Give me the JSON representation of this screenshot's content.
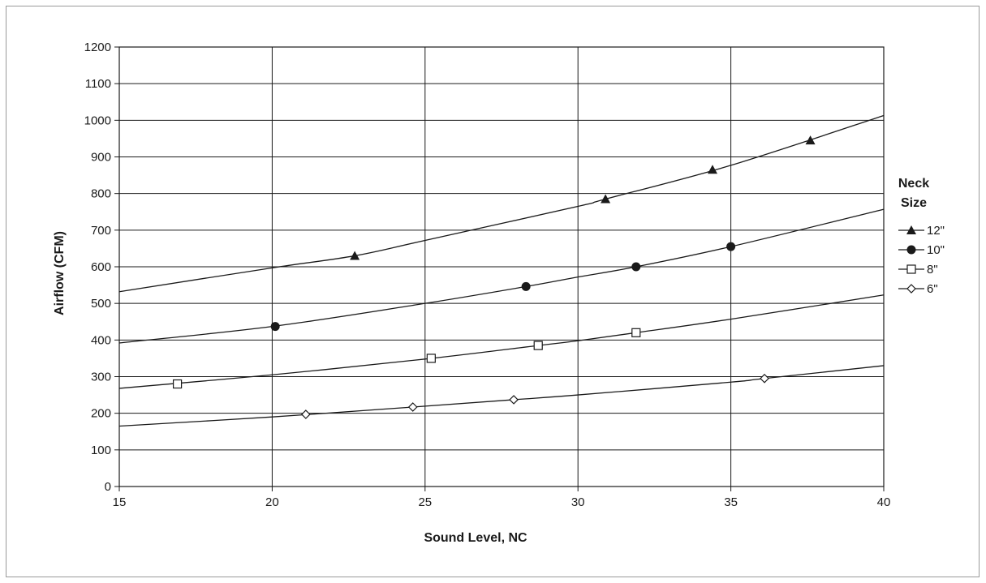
{
  "chart_data": {
    "type": "line",
    "title": "",
    "xlabel": "Sound Level, NC",
    "ylabel": "Airflow (CFM)",
    "xlim": [
      15,
      40
    ],
    "ylim": [
      0,
      1200
    ],
    "xticks": [
      15,
      20,
      25,
      30,
      35,
      40
    ],
    "yticks": [
      0,
      100,
      200,
      300,
      400,
      500,
      600,
      700,
      800,
      900,
      1000,
      1100,
      1200
    ],
    "grid": true,
    "legend_title": [
      "Neck",
      "Size"
    ],
    "legend_position": "right",
    "series": [
      {
        "name": "12\"",
        "marker": "triangle",
        "points": [
          [
            22.7,
            630
          ],
          [
            30.9,
            785
          ],
          [
            34.4,
            865
          ],
          [
            37.6,
            945
          ]
        ],
        "fit": [
          [
            15,
            532
          ],
          [
            20,
            597
          ],
          [
            22.7,
            630
          ],
          [
            25,
            672
          ],
          [
            30,
            765
          ],
          [
            30.9,
            785
          ],
          [
            35,
            877
          ],
          [
            40,
            1013
          ]
        ]
      },
      {
        "name": "10\"",
        "marker": "circle",
        "points": [
          [
            20.1,
            437
          ],
          [
            28.3,
            546
          ],
          [
            31.9,
            600
          ],
          [
            35.0,
            655
          ]
        ],
        "fit": [
          [
            15,
            392
          ],
          [
            20,
            437
          ],
          [
            25,
            500
          ],
          [
            28.3,
            546
          ],
          [
            30,
            572
          ],
          [
            31.9,
            600
          ],
          [
            35,
            655
          ],
          [
            40,
            757
          ]
        ]
      },
      {
        "name": "8\"",
        "marker": "open-square",
        "points": [
          [
            16.9,
            280
          ],
          [
            25.2,
            350
          ],
          [
            28.7,
            385
          ],
          [
            31.9,
            420
          ]
        ],
        "fit": [
          [
            15,
            268
          ],
          [
            20,
            305
          ],
          [
            25,
            348
          ],
          [
            28.7,
            385
          ],
          [
            30,
            398
          ],
          [
            31.9,
            420
          ],
          [
            35,
            457
          ],
          [
            40,
            523
          ]
        ]
      },
      {
        "name": "6\"",
        "marker": "open-diamond",
        "points": [
          [
            21.1,
            197
          ],
          [
            24.6,
            217
          ],
          [
            27.9,
            237
          ],
          [
            36.1,
            295
          ]
        ],
        "fit": [
          [
            15,
            165
          ],
          [
            20,
            190
          ],
          [
            24.6,
            217
          ],
          [
            27.9,
            237
          ],
          [
            30,
            250
          ],
          [
            35,
            285
          ],
          [
            36.1,
            295
          ],
          [
            40,
            330
          ]
        ]
      }
    ]
  }
}
